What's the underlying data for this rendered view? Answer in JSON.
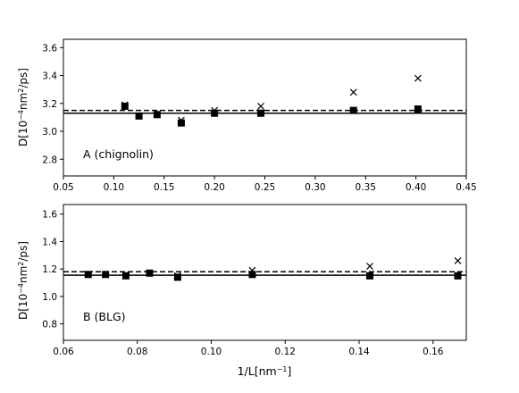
{
  "figure": {
    "xlabel_base": "1/L[nm",
    "xlabel_sup": "−1",
    "xlabel_end": "]",
    "ylabel_base": "D[10",
    "ylabel_sup1": "−4",
    "ylabel_mid": "nm",
    "ylabel_sup2": "2",
    "ylabel_end": "/ps]"
  },
  "chart_data": [
    {
      "type": "scatter",
      "annotation": "A (chignolin)",
      "xlim": [
        0.05,
        0.45
      ],
      "ylim": [
        2.68,
        3.66
      ],
      "xticks": [
        "0.05",
        "0.10",
        "0.15",
        "0.20",
        "0.25",
        "0.30",
        "0.35",
        "0.40",
        "0.45"
      ],
      "xtick_values": [
        0.05,
        0.1,
        0.15,
        0.2,
        0.25,
        0.3,
        0.35,
        0.4,
        0.45
      ],
      "yticks": [
        "2.8",
        "3.0",
        "3.2",
        "3.4",
        "3.6"
      ],
      "ytick_values": [
        2.8,
        3.0,
        3.2,
        3.4,
        3.6
      ],
      "hlines": [
        {
          "style": "solid",
          "y": 3.13
        },
        {
          "style": "dashed",
          "y": 3.15
        }
      ],
      "series": [
        {
          "marker": "square",
          "x": [
            0.111,
            0.125,
            0.143,
            0.167,
            0.2,
            0.246,
            0.338,
            0.402
          ],
          "y": [
            3.18,
            3.11,
            3.12,
            3.06,
            3.13,
            3.13,
            3.15,
            3.16
          ]
        },
        {
          "marker": "x",
          "x": [
            0.111,
            0.125,
            0.143,
            0.167,
            0.2,
            0.246,
            0.338,
            0.402
          ],
          "y": [
            3.19,
            3.11,
            3.12,
            3.08,
            3.15,
            3.18,
            3.28,
            3.38
          ]
        }
      ]
    },
    {
      "type": "scatter",
      "annotation": "B (BLG)",
      "xlim": [
        0.06,
        0.169
      ],
      "ylim": [
        0.68,
        1.67
      ],
      "xticks": [
        "0.06",
        "0.08",
        "0.10",
        "0.12",
        "0.14",
        "0.16"
      ],
      "xtick_values": [
        0.06,
        0.08,
        0.1,
        0.12,
        0.14,
        0.16
      ],
      "yticks": [
        "0.8",
        "1.0",
        "1.2",
        "1.4",
        "1.6"
      ],
      "ytick_values": [
        0.8,
        1.0,
        1.2,
        1.4,
        1.6
      ],
      "hlines": [
        {
          "style": "solid",
          "y": 1.155
        },
        {
          "style": "dashed",
          "y": 1.18
        }
      ],
      "series": [
        {
          "marker": "square",
          "x": [
            0.0667,
            0.0714,
            0.0769,
            0.0833,
            0.0909,
            0.1111,
            0.1429,
            0.1667
          ],
          "y": [
            1.16,
            1.16,
            1.15,
            1.17,
            1.14,
            1.16,
            1.15,
            1.15
          ]
        },
        {
          "marker": "x",
          "x": [
            0.0667,
            0.0714,
            0.0769,
            0.0833,
            0.0909,
            0.1111,
            0.1429,
            0.1667
          ],
          "y": [
            1.16,
            1.16,
            1.16,
            1.17,
            1.15,
            1.19,
            1.22,
            1.26
          ]
        }
      ]
    }
  ]
}
